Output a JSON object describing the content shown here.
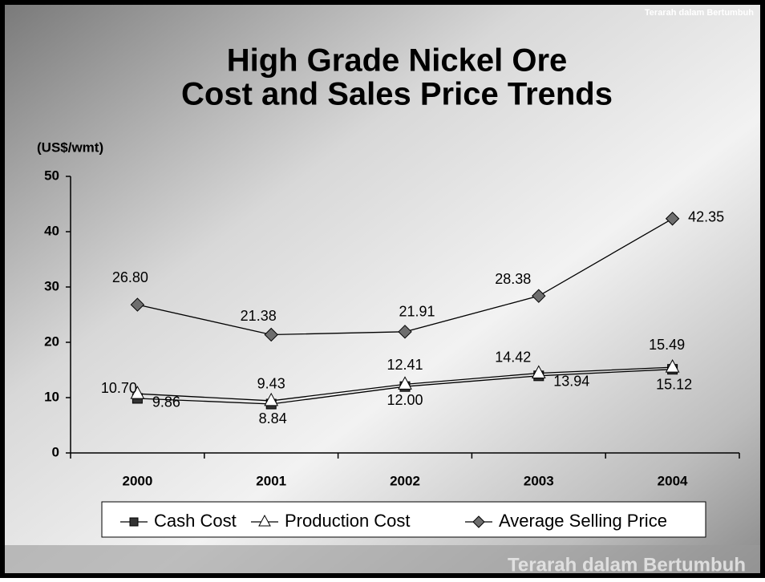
{
  "chart_data": {
    "type": "line",
    "title": [
      "High Grade Nickel Ore",
      "Cost and Sales Price Trends"
    ],
    "y_label": "(US$/wmt)",
    "watermark": "Terarah dalam Bertumbuh",
    "categories": [
      "2000",
      "2001",
      "2002",
      "2003",
      "2004"
    ],
    "series": [
      {
        "name": "Cash Cost",
        "color": "#333333",
        "marker": "square",
        "values": [
          9.86,
          8.84,
          12.0,
          13.94,
          15.12
        ],
        "value_labels": [
          "9.86",
          "8.84",
          "12.00",
          "13.94",
          "15.12"
        ]
      },
      {
        "name": "Production Cost",
        "color": "#ffffff",
        "marker": "triangle",
        "values": [
          10.7,
          9.43,
          12.41,
          14.42,
          15.49
        ],
        "value_labels": [
          "10.70",
          "9.43",
          "12.41",
          "14.42",
          "15.49"
        ]
      },
      {
        "name": "Average Selling Price",
        "color": "#6e6e6e",
        "marker": "diamond",
        "values": [
          26.8,
          21.38,
          21.91,
          28.38,
          42.35
        ],
        "value_labels": [
          "26.80",
          "21.38",
          "21.91",
          "28.38",
          "42.35"
        ]
      }
    ],
    "ylim": [
      0,
      50
    ],
    "yticks": [
      0,
      10,
      20,
      30,
      40,
      50
    ],
    "legend": "bottom"
  }
}
